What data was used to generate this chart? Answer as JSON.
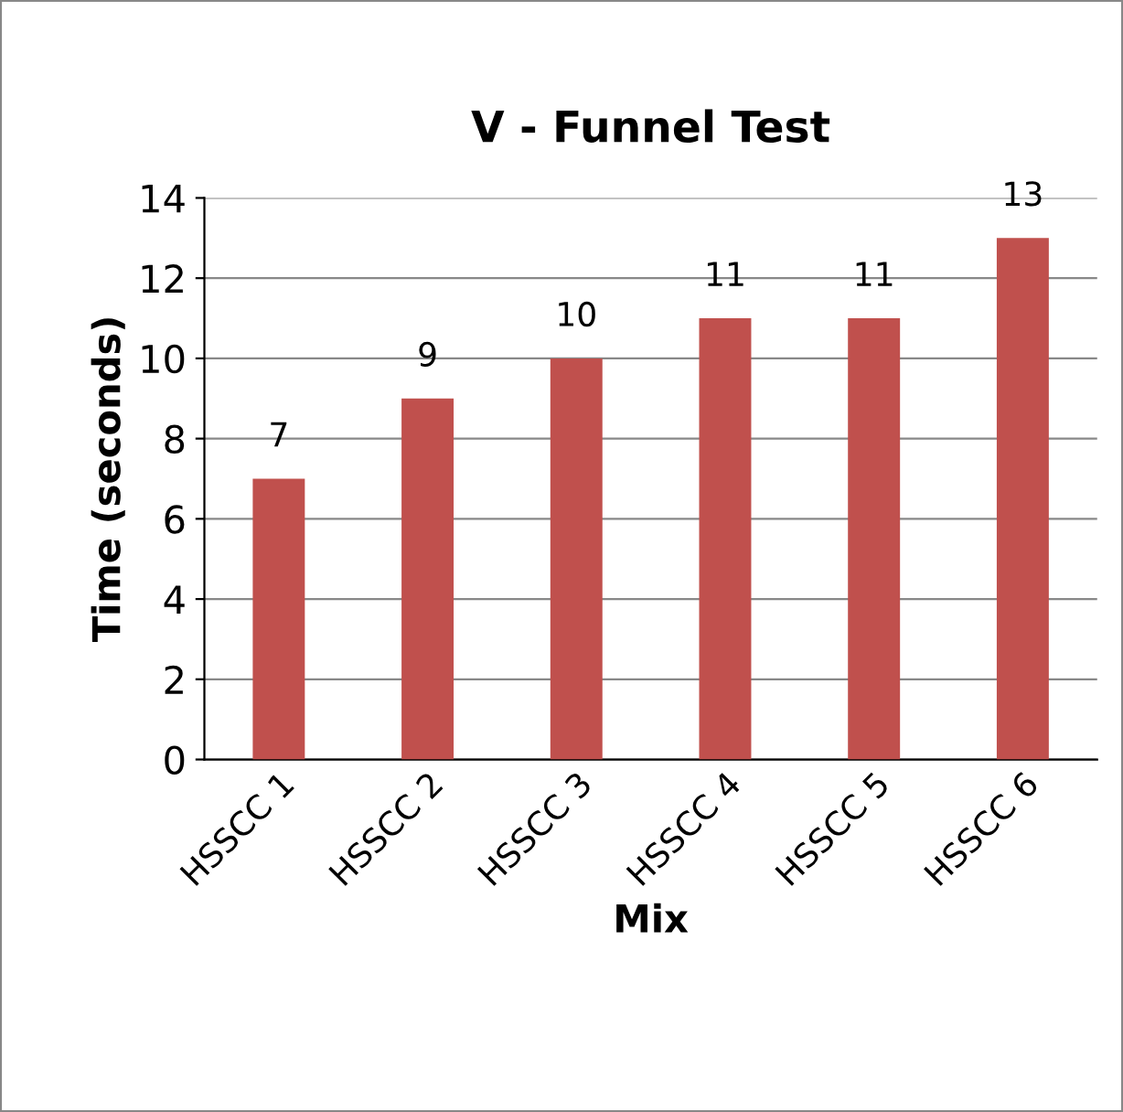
{
  "chart_data": {
    "type": "bar",
    "title": "V - Funnel Test",
    "xlabel": "Mix",
    "ylabel": "Time (seconds)",
    "categories": [
      "HSSCC 1",
      "HSSCC 2",
      "HSSCC 3",
      "HSSCC 4",
      "HSSCC 5",
      "HSSCC 6"
    ],
    "values": [
      7,
      9,
      10,
      11,
      11,
      13
    ],
    "color": "#c0504d",
    "ylim": [
      0,
      14
    ],
    "yticks": [
      0,
      2,
      4,
      6,
      8,
      10,
      12,
      14
    ],
    "grid": "y",
    "data_labels": true,
    "legend": false
  }
}
